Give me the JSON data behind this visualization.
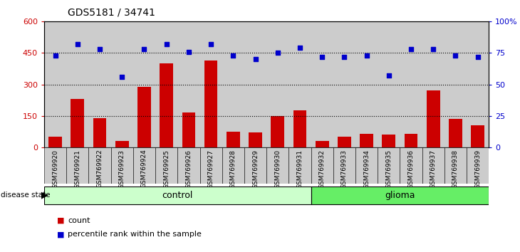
{
  "title": "GDS5181 / 34741",
  "samples": [
    "GSM769920",
    "GSM769921",
    "GSM769922",
    "GSM769923",
    "GSM769924",
    "GSM769925",
    "GSM769926",
    "GSM769927",
    "GSM769928",
    "GSM769929",
    "GSM769930",
    "GSM769931",
    "GSM769932",
    "GSM769933",
    "GSM769934",
    "GSM769935",
    "GSM769936",
    "GSM769937",
    "GSM769938",
    "GSM769939"
  ],
  "counts": [
    50,
    230,
    140,
    30,
    290,
    400,
    165,
    415,
    75,
    70,
    148,
    175,
    30,
    50,
    65,
    60,
    65,
    270,
    135,
    105
  ],
  "percentiles": [
    73,
    82,
    78,
    56,
    78,
    82,
    76,
    82,
    73,
    70,
    75,
    79,
    72,
    72,
    73,
    57,
    78,
    78,
    73,
    72
  ],
  "n_control": 12,
  "n_glioma": 8,
  "bar_color": "#CC0000",
  "dot_color": "#0000CC",
  "control_bg": "#CCFFCC",
  "glioma_bg": "#66EE66",
  "xtick_bg": "#CCCCCC",
  "ylim_left": [
    0,
    600
  ],
  "ylim_right": [
    0,
    100
  ],
  "yticks_left": [
    0,
    150,
    300,
    450,
    600
  ],
  "yticks_right": [
    0,
    25,
    50,
    75,
    100
  ],
  "ytick_labels_right": [
    "0",
    "25",
    "50",
    "75",
    "100%"
  ],
  "hlines": [
    150,
    300,
    450
  ],
  "legend_count_label": "count",
  "legend_pct_label": "percentile rank within the sample"
}
